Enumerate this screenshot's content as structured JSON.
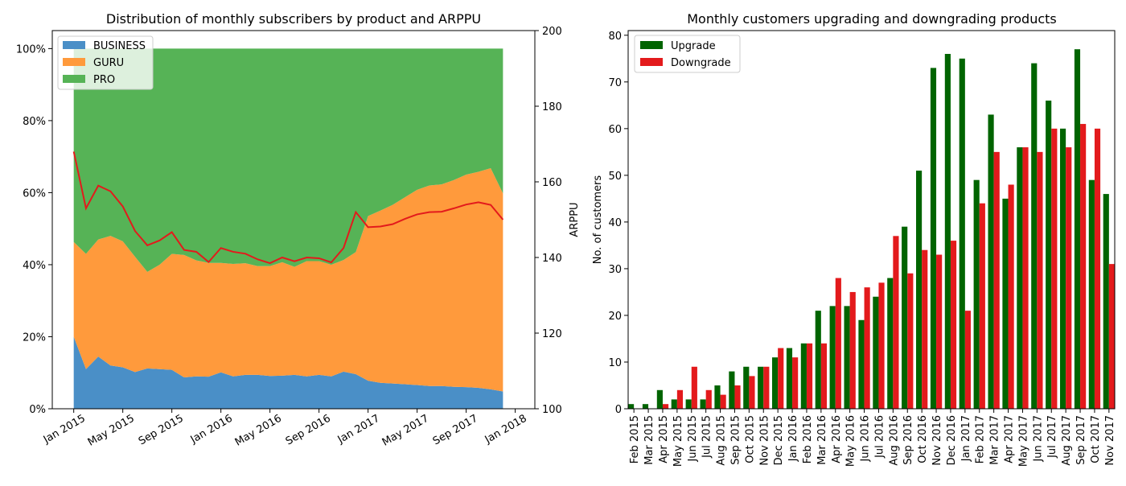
{
  "chart_data": [
    {
      "type": "area",
      "title": "Distribution of monthly subscribers by product and ARPPU",
      "xlabel": "",
      "ylabel": "",
      "y2label": "ARPPU",
      "stacked_percent": true,
      "x": [
        "Jan 2015",
        "Feb 2015",
        "Mar 2015",
        "Apr 2015",
        "May 2015",
        "Jun 2015",
        "Jul 2015",
        "Aug 2015",
        "Sep 2015",
        "Oct 2015",
        "Nov 2015",
        "Dec 2015",
        "Jan 2016",
        "Feb 2016",
        "Mar 2016",
        "Apr 2016",
        "May 2016",
        "Jun 2016",
        "Jul 2016",
        "Aug 2016",
        "Sep 2016",
        "Oct 2016",
        "Nov 2016",
        "Dec 2016",
        "Jan 2017",
        "Feb 2017",
        "Mar 2017",
        "Apr 2017",
        "May 2017",
        "Jun 2017",
        "Jul 2017",
        "Aug 2017",
        "Sep 2017",
        "Oct 2017",
        "Nov 2017",
        "Dec 2017"
      ],
      "x_ticks": [
        "Jan 2015",
        "May 2015",
        "Sep 2015",
        "Jan 2016",
        "May 2016",
        "Sep 2016",
        "Jan 2017",
        "May 2017",
        "Sep 2017",
        "Jan 2018"
      ],
      "y_ticks": [
        "0%",
        "20%",
        "40%",
        "60%",
        "80%",
        "100%"
      ],
      "y2_ticks": [
        "100",
        "120",
        "140",
        "160",
        "180",
        "200"
      ],
      "ylim": [
        0,
        1.05
      ],
      "y2lim": [
        100,
        200
      ],
      "series": [
        {
          "name": "BUSINESS",
          "color": "#4a8fc7",
          "values": [
            0.2,
            0.11,
            0.145,
            0.12,
            0.115,
            0.102,
            0.112,
            0.11,
            0.108,
            0.087,
            0.09,
            0.089,
            0.101,
            0.09,
            0.094,
            0.094,
            0.091,
            0.092,
            0.094,
            0.09,
            0.094,
            0.09,
            0.103,
            0.096,
            0.078,
            0.072,
            0.07,
            0.068,
            0.066,
            0.063,
            0.063,
            0.061,
            0.06,
            0.058,
            0.054,
            0.048
          ]
        },
        {
          "name": "GURU",
          "color": "#ff9a3c",
          "values": [
            0.263,
            0.32,
            0.325,
            0.36,
            0.35,
            0.32,
            0.268,
            0.29,
            0.322,
            0.34,
            0.322,
            0.316,
            0.304,
            0.312,
            0.31,
            0.302,
            0.305,
            0.315,
            0.3,
            0.32,
            0.316,
            0.31,
            0.31,
            0.339,
            0.457,
            0.478,
            0.496,
            0.519,
            0.542,
            0.557,
            0.56,
            0.574,
            0.59,
            0.6,
            0.614,
            0.55
          ]
        },
        {
          "name": "PRO",
          "color": "#56b356",
          "values": [
            0.537,
            0.57,
            0.53,
            0.52,
            0.535,
            0.578,
            0.62,
            0.6,
            0.57,
            0.573,
            0.588,
            0.595,
            0.595,
            0.598,
            0.596,
            0.604,
            0.604,
            0.593,
            0.606,
            0.59,
            0.59,
            0.6,
            0.587,
            0.565,
            0.465,
            0.45,
            0.434,
            0.413,
            0.392,
            0.38,
            0.377,
            0.365,
            0.35,
            0.342,
            0.332,
            0.402
          ]
        }
      ],
      "arppu": {
        "color": "#e31a1c",
        "values": [
          168,
          153,
          159,
          157.5,
          153.5,
          147,
          143.2,
          144.5,
          146.7,
          142,
          141.5,
          138.8,
          142.5,
          141.5,
          141,
          139.5,
          138.5,
          140,
          139,
          140,
          139.8,
          138.7,
          142.5,
          152,
          148,
          148.2,
          148.8,
          150.2,
          151.4,
          152,
          152.1,
          153,
          154,
          154.6,
          153.9,
          150
        ]
      }
    },
    {
      "type": "bar",
      "title": "Monthly customers upgrading and downgrading products",
      "xlabel": "",
      "ylabel": "No. of customers",
      "ylim": [
        0,
        81
      ],
      "y_ticks": [
        "0",
        "10",
        "20",
        "30",
        "40",
        "50",
        "60",
        "70",
        "80"
      ],
      "categories": [
        "Feb 2015",
        "Mar 2015",
        "Apr 2015",
        "May 2015",
        "Jun 2015",
        "Jul 2015",
        "Aug 2015",
        "Sep 2015",
        "Oct 2015",
        "Nov 2015",
        "Dec 2015",
        "Jan 2016",
        "Feb 2016",
        "Mar 2016",
        "Apr 2016",
        "May 2016",
        "Jun 2016",
        "Jul 2016",
        "Aug 2016",
        "Sep 2016",
        "Oct 2016",
        "Nov 2016",
        "Dec 2016",
        "Jan 2017",
        "Feb 2017",
        "Mar 2017",
        "Apr 2017",
        "May 2017",
        "Jun 2017",
        "Jul 2017",
        "Aug 2017",
        "Sep 2017",
        "Oct 2017",
        "Nov 2017"
      ],
      "series": [
        {
          "name": "Upgrade",
          "color": "#006400",
          "values": [
            1,
            1,
            4,
            2,
            2,
            2,
            5,
            8,
            9,
            9,
            11,
            13,
            14,
            21,
            22,
            22,
            19,
            24,
            28,
            39,
            51,
            73,
            76,
            75,
            49,
            63,
            45,
            56,
            74,
            66,
            60,
            77,
            49,
            46
          ]
        },
        {
          "name": "Downgrade",
          "color": "#e31a1c",
          "values": [
            0,
            0,
            1,
            4,
            9,
            4,
            3,
            5,
            7,
            9,
            13,
            11,
            14,
            14,
            28,
            25,
            26,
            27,
            37,
            29,
            34,
            33,
            36,
            21,
            44,
            55,
            48,
            56,
            55,
            60,
            56,
            61,
            60,
            31
          ]
        }
      ]
    }
  ]
}
